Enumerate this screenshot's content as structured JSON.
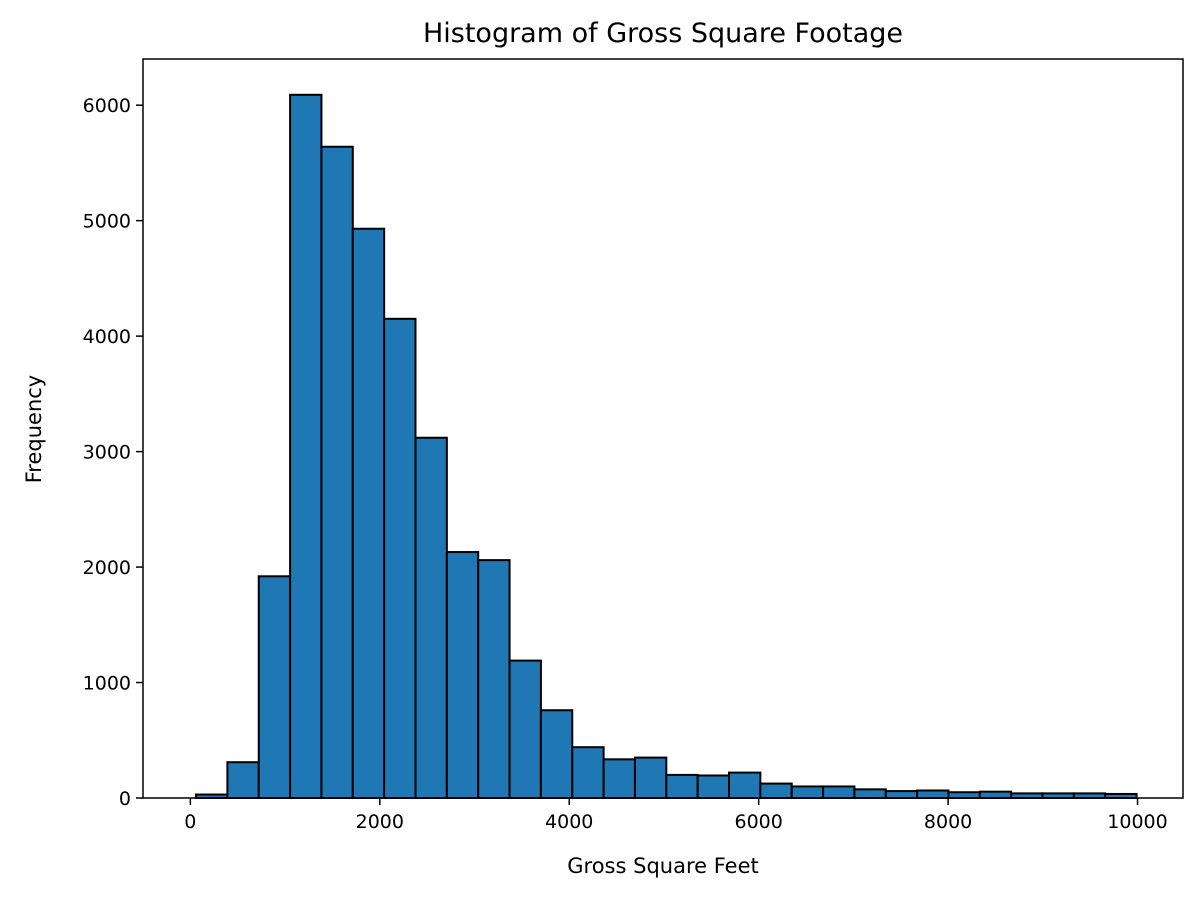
{
  "chart_data": {
    "type": "bar",
    "title": "Histogram of Gross Square Footage",
    "xlabel": "Gross Square Feet",
    "ylabel": "Frequency",
    "xlim": [
      -500,
      10480
    ],
    "ylim": [
      0,
      6400
    ],
    "xticks": [
      0,
      2000,
      4000,
      6000,
      8000,
      10000
    ],
    "yticks": [
      0,
      1000,
      2000,
      3000,
      4000,
      5000,
      6000
    ],
    "bin_start": 60,
    "bin_width": 331,
    "values": [
      30,
      310,
      1920,
      6090,
      5640,
      4930,
      4150,
      3120,
      2130,
      2060,
      1190,
      760,
      440,
      335,
      350,
      200,
      195,
      220,
      125,
      100,
      100,
      75,
      60,
      65,
      50,
      55,
      40,
      40,
      40,
      35
    ],
    "grid": false,
    "bar_color": "#1f77b4",
    "edge_color": "#000000"
  }
}
